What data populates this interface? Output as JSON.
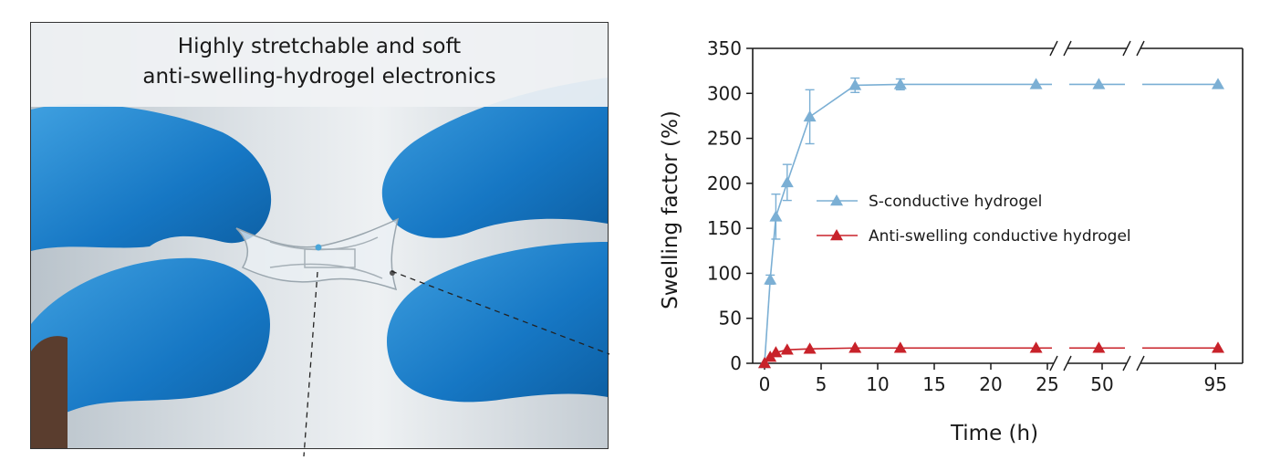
{
  "photo": {
    "title_line1": "Highly stretchable and soft",
    "title_line2": "anti-swelling-hydrogel electronics"
  },
  "chart_data": {
    "type": "line",
    "xlabel": "Time (h)",
    "ylabel": "Swelling factor (%)",
    "ylim": [
      0,
      350
    ],
    "y_ticks": [
      0,
      50,
      100,
      150,
      200,
      250,
      300,
      350
    ],
    "x_ticks": [
      "0",
      "5",
      "10",
      "15",
      "20",
      "25",
      "50",
      "95"
    ],
    "x_axis_breaks": [
      "between 25 and 50",
      "between 50 and 95"
    ],
    "legend_position": "center",
    "series": [
      {
        "name": "S-conductive hydrogel",
        "color": "#7bafd4",
        "marker": "triangle",
        "points": [
          {
            "x": 0,
            "y": 0,
            "err": 0
          },
          {
            "x": 0.5,
            "y": 93,
            "err": 5
          },
          {
            "x": 1,
            "y": 163,
            "err": 25
          },
          {
            "x": 2,
            "y": 201,
            "err": 20
          },
          {
            "x": 4,
            "y": 274,
            "err": 30
          },
          {
            "x": 8,
            "y": 309,
            "err": 8
          },
          {
            "x": 12,
            "y": 310,
            "err": 6
          },
          {
            "x": 24,
            "y": 310,
            "err": 0
          },
          {
            "x": 48,
            "y": 310,
            "err": 0
          },
          {
            "x": 96,
            "y": 310,
            "err": 0
          }
        ]
      },
      {
        "name": "Anti-swelling conductive hydrogel",
        "color": "#c8222a",
        "marker": "triangle",
        "points": [
          {
            "x": 0,
            "y": 0,
            "err": 0
          },
          {
            "x": 0.5,
            "y": 7,
            "err": 0
          },
          {
            "x": 1,
            "y": 12,
            "err": 0
          },
          {
            "x": 2,
            "y": 15,
            "err": 0
          },
          {
            "x": 4,
            "y": 16,
            "err": 0
          },
          {
            "x": 8,
            "y": 17,
            "err": 0
          },
          {
            "x": 12,
            "y": 17,
            "err": 0
          },
          {
            "x": 24,
            "y": 17,
            "err": 0
          },
          {
            "x": 48,
            "y": 17,
            "err": 0
          },
          {
            "x": 96,
            "y": 17,
            "err": 0
          }
        ]
      }
    ]
  }
}
